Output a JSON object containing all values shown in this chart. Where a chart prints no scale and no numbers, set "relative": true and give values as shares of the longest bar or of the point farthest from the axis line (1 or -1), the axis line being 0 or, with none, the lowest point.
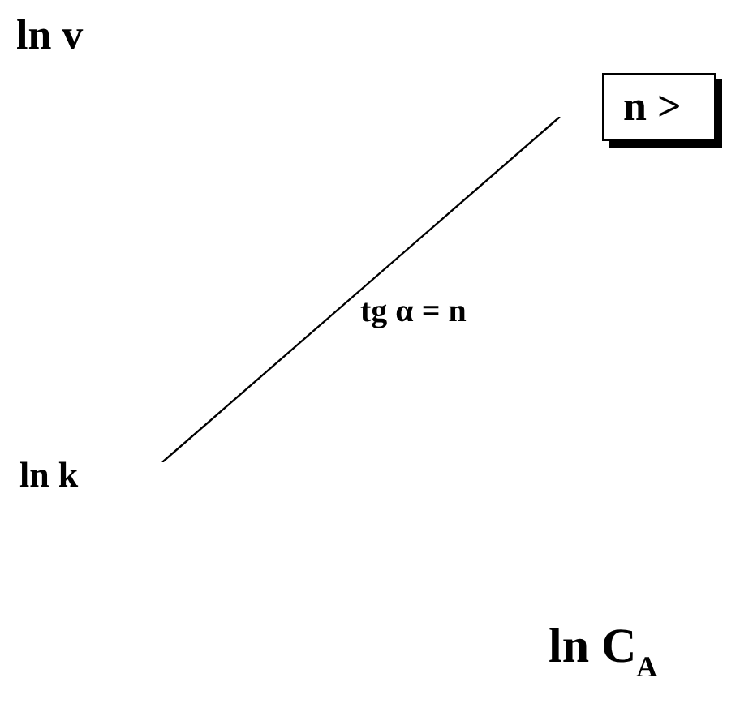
{
  "chart_data": {
    "type": "line",
    "relative": true,
    "xlabel": "ln C$_{A}$",
    "ylabel": "ln v",
    "categories": [
      null,
      null
    ],
    "series": [
      {
        "color": "#000000",
        "values": [
          0,
          1
        ]
      }
    ],
    "annotations": [
      "ln k",
      "tg α = n",
      "n >"
    ],
    "marker": "none",
    "legend": false
  }
}
